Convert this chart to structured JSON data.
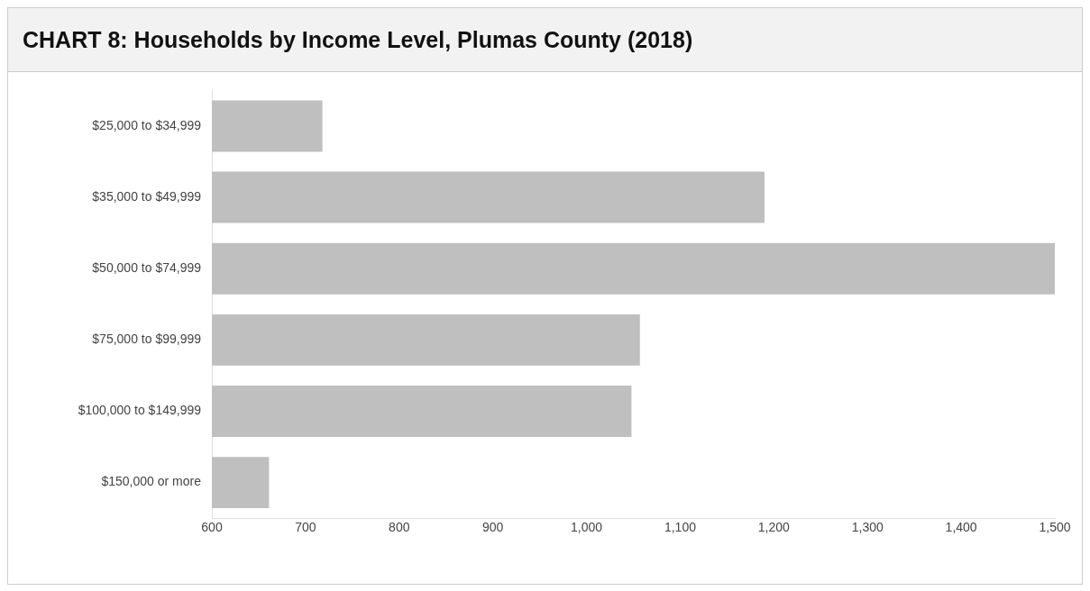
{
  "chart_data": {
    "type": "bar",
    "orientation": "horizontal",
    "title": "CHART 8: Households by Income Level, Plumas County (2018)",
    "categories": [
      "$25,000 to $34,999",
      "$35,000 to $49,999",
      "$50,000 to $74,999",
      "$75,000 to $99,999",
      "$100,000 to $149,999",
      "$150,000 or more"
    ],
    "values": [
      718,
      1190,
      1500,
      1057,
      1048,
      661
    ],
    "color": "#bfbfbf",
    "xlim": [
      600,
      1500
    ],
    "xticks": [
      600,
      700,
      800,
      900,
      {
        "value": 1000,
        "label": "1,000"
      },
      {
        "value": 1100,
        "label": "1,100"
      },
      {
        "value": 1200,
        "label": "1,200"
      },
      {
        "value": 1300,
        "label": "1,300"
      },
      {
        "value": 1400,
        "label": "1,400"
      },
      {
        "value": 1500,
        "label": "1,500"
      }
    ],
    "grid": false,
    "legend": false
  }
}
